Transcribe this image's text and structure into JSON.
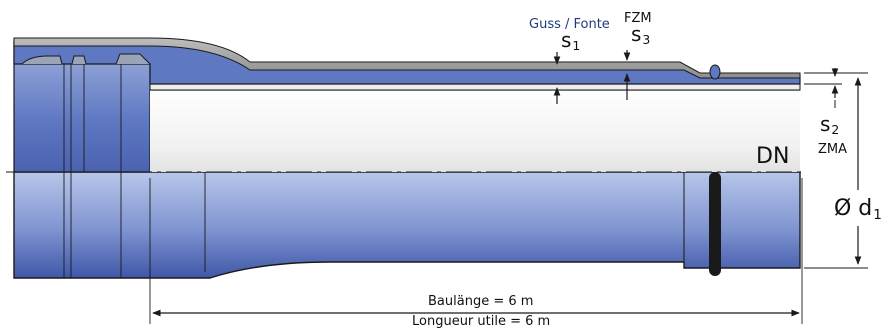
{
  "labels": {
    "material_top": "Guss / Fonte",
    "coating_top": "FZM",
    "s1_main": "s",
    "s1_sub": "1",
    "s3_main": "s",
    "s3_sub": "3",
    "s2_main": "s",
    "s2_sub": "2",
    "lining": "ZMA",
    "dn": "DN",
    "diameter_main": "Ø d",
    "diameter_sub": "1",
    "length_de": "Baulänge = 6 m",
    "length_fr": "Longueur utile = 6 m"
  },
  "colors": {
    "pipe_blue": "#5f78c2",
    "pipe_blue_light": "#b8c6ea",
    "coating_gray": "#a9a9a9",
    "lining_light": "#f3f3f3",
    "outline": "#1a1a1a",
    "label_blue": "#1e3c7a"
  }
}
